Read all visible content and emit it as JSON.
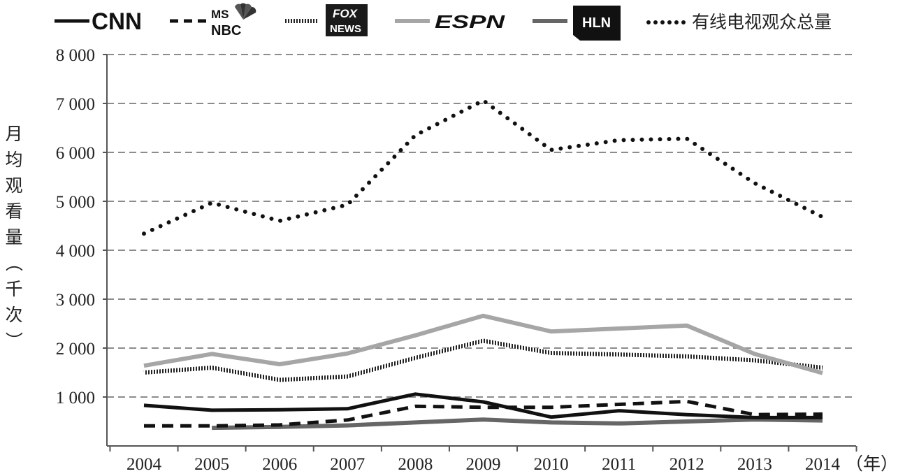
{
  "chart_data": {
    "type": "line",
    "title": "",
    "xlabel": "（年）",
    "ylabel": "月均观看量（千次）",
    "categories": [
      "2004",
      "2005",
      "2006",
      "2007",
      "2008",
      "2009",
      "2010",
      "2011",
      "2012",
      "2013",
      "2014"
    ],
    "ylim": [
      0,
      8000
    ],
    "yticks": [
      1000,
      2000,
      3000,
      4000,
      5000,
      6000,
      7000,
      8000
    ],
    "ytick_labels": [
      "1 000",
      "2 000",
      "3 000",
      "4 000",
      "5 000",
      "6 000",
      "7 000",
      "8 000"
    ],
    "grid": "horizontal-dashed",
    "legend_position": "top",
    "series": [
      {
        "name": "CNN",
        "style": "solid-black",
        "color": "#111111",
        "values": [
          830,
          730,
          740,
          760,
          1060,
          900,
          590,
          720,
          640,
          580,
          580
        ]
      },
      {
        "name": "MSNBC",
        "style": "dashed-black",
        "color": "#111111",
        "values": [
          410,
          410,
          430,
          530,
          810,
          790,
          790,
          850,
          910,
          640,
          650
        ]
      },
      {
        "name": "FOX NEWS",
        "style": "hatched",
        "color": "#333333",
        "values": [
          1500,
          1600,
          1350,
          1420,
          1800,
          2150,
          1900,
          1870,
          1830,
          1750,
          1600
        ]
      },
      {
        "name": "ESPN",
        "style": "solid-lightgray",
        "color": "#a6a6a6",
        "values": [
          1640,
          1880,
          1670,
          1890,
          2260,
          2660,
          2340,
          2400,
          2460,
          1880,
          1490
        ]
      },
      {
        "name": "HLN",
        "style": "solid-darkgray",
        "color": "#666666",
        "values": [
          null,
          370,
          390,
          420,
          480,
          540,
          480,
          460,
          500,
          540,
          520
        ]
      },
      {
        "name": "有线电视观众总量",
        "style": "dotted-black",
        "color": "#111111",
        "values": [
          4340,
          4970,
          4600,
          4930,
          6350,
          7060,
          6050,
          6250,
          6280,
          5370,
          4680
        ]
      }
    ]
  },
  "legend": {
    "cnn_logo": "CNN",
    "msnbc_logo_top": "MS",
    "msnbc_logo_bottom": "NBC",
    "fox_logo_top": "FOX",
    "fox_logo_bottom": "NEWS",
    "espn_logo": "ESPN",
    "hln_logo": "HLN",
    "total_label": "有线电视观众总量"
  }
}
